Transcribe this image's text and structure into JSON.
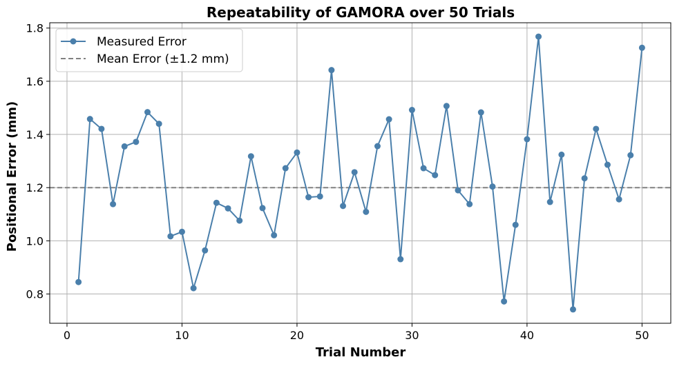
{
  "chart_data": {
    "type": "line",
    "title": "Repeatability of GAMORA over 50 Trials",
    "xlabel": "Trial Number",
    "ylabel": "Positional Error (mm)",
    "xlim": [
      -1.5,
      52.5
    ],
    "ylim": [
      0.69,
      1.82
    ],
    "xticks": [
      0,
      10,
      20,
      30,
      40,
      50
    ],
    "yticks": [
      0.8,
      1.0,
      1.2,
      1.4,
      1.6,
      1.8
    ],
    "grid": true,
    "legend_position": "top-left",
    "series": [
      {
        "name": "Measured Error",
        "color": "#4a7fab",
        "marker": "circle",
        "x": [
          1,
          2,
          3,
          4,
          5,
          6,
          7,
          8,
          9,
          10,
          11,
          12,
          13,
          14,
          15,
          16,
          17,
          18,
          19,
          20,
          21,
          22,
          23,
          24,
          25,
          26,
          27,
          28,
          29,
          30,
          31,
          32,
          33,
          34,
          35,
          36,
          37,
          38,
          39,
          40,
          41,
          42,
          43,
          44,
          45,
          46,
          47,
          48,
          49,
          50
        ],
        "y": [
          0.845,
          1.458,
          1.421,
          1.138,
          1.355,
          1.372,
          1.484,
          1.44,
          1.017,
          1.034,
          0.822,
          0.964,
          1.143,
          1.122,
          1.076,
          1.318,
          1.123,
          1.021,
          1.273,
          1.332,
          1.164,
          1.167,
          1.642,
          1.131,
          1.258,
          1.109,
          1.356,
          1.457,
          0.931,
          1.492,
          1.273,
          1.247,
          1.507,
          1.19,
          1.138,
          1.483,
          1.204,
          0.772,
          1.06,
          1.382,
          1.768,
          1.146,
          1.324,
          0.742,
          1.235,
          1.421,
          1.286,
          1.156,
          1.322,
          1.726
        ]
      }
    ],
    "reference_lines": [
      {
        "name": "Mean Error (±1.2 mm)",
        "y": 1.2,
        "color": "#808080",
        "style": "dashed"
      }
    ]
  }
}
